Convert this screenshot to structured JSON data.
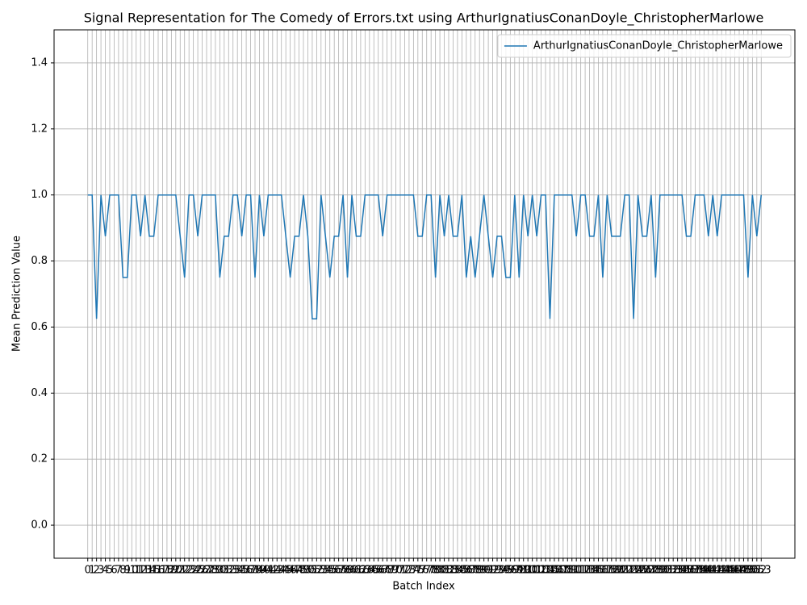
{
  "chart_data": {
    "type": "line",
    "title": "Signal Representation for The Comedy of Errors.txt using ArthurIgnatiusConanDoyle_ChristopherMarlowe",
    "xlabel": "Batch Index",
    "ylabel": "Mean Prediction Value",
    "x": [
      0,
      1,
      2,
      3,
      4,
      5,
      6,
      7,
      8,
      9,
      10,
      11,
      12,
      13,
      14,
      15,
      16,
      17,
      18,
      19,
      20,
      21,
      22,
      23,
      24,
      25,
      26,
      27,
      28,
      29,
      30,
      31,
      32,
      33,
      34,
      35,
      36,
      37,
      38,
      39,
      40,
      41,
      42,
      43,
      44,
      45,
      46,
      47,
      48,
      49,
      50,
      51,
      52,
      53,
      54,
      55,
      56,
      57,
      58,
      59,
      60,
      61,
      62,
      63,
      64,
      65,
      66,
      67,
      68,
      69,
      70,
      71,
      72,
      73,
      74,
      75,
      76,
      77,
      78,
      79,
      80,
      81,
      82,
      83,
      84,
      85,
      86,
      87,
      88,
      89,
      90,
      91,
      92,
      93,
      94,
      95,
      96,
      97,
      98,
      99,
      100,
      101,
      102,
      103,
      104,
      105,
      106,
      107,
      108,
      109,
      110,
      111,
      112,
      113,
      114,
      115,
      116,
      117,
      118,
      119,
      120,
      121,
      122,
      123,
      124,
      125,
      126,
      127,
      128,
      129,
      130,
      131,
      132,
      133,
      134,
      135,
      136,
      137,
      138,
      139,
      140,
      141,
      142,
      143,
      144,
      145,
      146,
      147,
      148,
      149,
      150,
      151,
      152,
      153
    ],
    "series": [
      {
        "name": "ArthurIgnatiusConanDoyle_ChristopherMarlowe",
        "color": "#1f77b4",
        "values": [
          1.0,
          1.0,
          0.625,
          1.0,
          0.875,
          1.0,
          1.0,
          1.0,
          0.75,
          0.75,
          1.0,
          1.0,
          0.875,
          1.0,
          0.875,
          0.875,
          1.0,
          1.0,
          1.0,
          1.0,
          1.0,
          0.875,
          0.75,
          1.0,
          1.0,
          0.875,
          1.0,
          1.0,
          1.0,
          1.0,
          0.75,
          0.875,
          0.875,
          1.0,
          1.0,
          0.875,
          1.0,
          1.0,
          0.75,
          1.0,
          0.875,
          1.0,
          1.0,
          1.0,
          1.0,
          0.875,
          0.75,
          0.875,
          0.875,
          1.0,
          0.875,
          0.625,
          0.625,
          1.0,
          0.875,
          0.75,
          0.875,
          0.875,
          1.0,
          0.75,
          1.0,
          0.875,
          0.875,
          1.0,
          1.0,
          1.0,
          1.0,
          0.875,
          1.0,
          1.0,
          1.0,
          1.0,
          1.0,
          1.0,
          1.0,
          0.875,
          0.875,
          1.0,
          1.0,
          0.75,
          1.0,
          0.875,
          1.0,
          0.875,
          0.875,
          1.0,
          0.75,
          0.875,
          0.75,
          0.875,
          1.0,
          0.875,
          0.75,
          0.875,
          0.875,
          0.75,
          0.75,
          1.0,
          0.75,
          1.0,
          0.875,
          1.0,
          0.875,
          1.0,
          1.0,
          0.625,
          1.0,
          1.0,
          1.0,
          1.0,
          1.0,
          0.875,
          1.0,
          1.0,
          0.875,
          0.875,
          1.0,
          0.75,
          1.0,
          0.875,
          0.875,
          0.875,
          1.0,
          1.0,
          0.625,
          1.0,
          0.875,
          0.875,
          1.0,
          0.75,
          1.0,
          1.0,
          1.0,
          1.0,
          1.0,
          1.0,
          0.875,
          0.875,
          1.0,
          1.0,
          1.0,
          0.875,
          1.0,
          0.875,
          1.0,
          1.0,
          1.0,
          1.0,
          1.0,
          1.0,
          0.75,
          1.0,
          0.875,
          1.0
        ]
      }
    ],
    "xlim": [
      -7.65,
      160.65
    ],
    "xticks": [
      0,
      1,
      2,
      3,
      4,
      5,
      6,
      7,
      8,
      9,
      10,
      11,
      12,
      13,
      14,
      15,
      16,
      17,
      18,
      19,
      20,
      21,
      22,
      23,
      24,
      25,
      26,
      27,
      28,
      29,
      30,
      31,
      32,
      33,
      34,
      35,
      36,
      37,
      38,
      39,
      40,
      41,
      42,
      43,
      44,
      45,
      46,
      47,
      48,
      49,
      50,
      51,
      52,
      53,
      54,
      55,
      56,
      57,
      58,
      59,
      60,
      61,
      62,
      63,
      64,
      65,
      66,
      67,
      68,
      69,
      70,
      71,
      72,
      73,
      74,
      75,
      76,
      77,
      78,
      79,
      80,
      81,
      82,
      83,
      84,
      85,
      86,
      87,
      88,
      89,
      90,
      91,
      92,
      93,
      94,
      95,
      96,
      97,
      98,
      99,
      100,
      101,
      102,
      103,
      104,
      105,
      106,
      107,
      108,
      109,
      110,
      111,
      112,
      113,
      114,
      115,
      116,
      117,
      118,
      119,
      120,
      121,
      122,
      123,
      124,
      125,
      126,
      127,
      128,
      129,
      130,
      131,
      132,
      133,
      134,
      135,
      136,
      137,
      138,
      139,
      140,
      141,
      142,
      143,
      144,
      145,
      146,
      147,
      148,
      149,
      150,
      151,
      152,
      153
    ],
    "ylim": [
      -0.1,
      1.5
    ],
    "yticks": [
      {
        "value": 0,
        "label": "0.0"
      },
      0.2,
      0.4,
      0.6,
      0.8,
      {
        "value": 1,
        "label": "1.0"
      },
      1.2,
      1.4
    ],
    "grid": true,
    "legend": "upper right"
  }
}
